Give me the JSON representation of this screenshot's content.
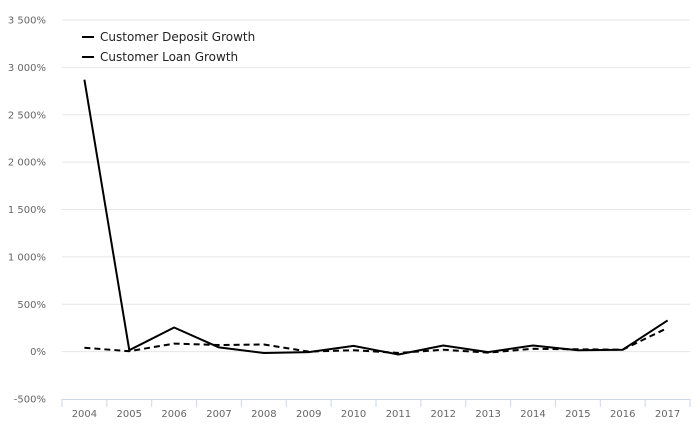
{
  "chart_data": {
    "type": "line",
    "categories": [
      "2004",
      "2005",
      "2006",
      "2007",
      "2008",
      "2009",
      "2010",
      "2011",
      "2012",
      "2013",
      "2014",
      "2015",
      "2016",
      "2017"
    ],
    "series": [
      {
        "name": "Customer Deposit Growth",
        "style": "solid",
        "values": [
          2870,
          15,
          255,
          45,
          -15,
          -5,
          60,
          -30,
          65,
          -5,
          65,
          15,
          20,
          330
        ]
      },
      {
        "name": "Customer Loan Growth",
        "style": "dashed",
        "values": [
          40,
          5,
          85,
          70,
          75,
          0,
          15,
          -15,
          20,
          -10,
          30,
          25,
          20,
          250
        ]
      }
    ],
    "y_ticks": [
      "3 500%",
      "3 000%",
      "2 500%",
      "2 000%",
      "1 500%",
      "1 000%",
      "500%",
      "0%",
      "-500%"
    ],
    "ylim": [
      -500,
      3500
    ],
    "grid": true,
    "legend_position": "top-left",
    "colors": {
      "line": "#000000",
      "grid": "#e6e6e6",
      "axis": "#ccd6eb",
      "tick_text": "#666666"
    }
  }
}
